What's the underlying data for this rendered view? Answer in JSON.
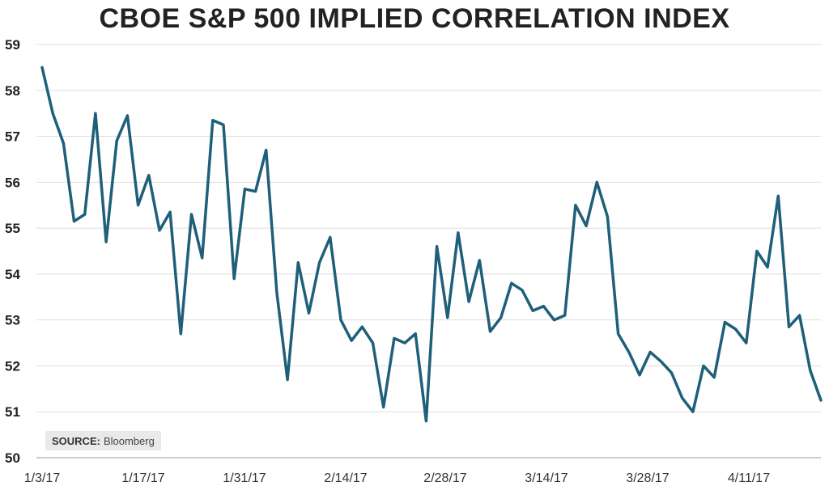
{
  "chart_data": {
    "type": "line",
    "title": "CBOE S&P 500 IMPLIED CORRELATION INDEX",
    "xlabel": "",
    "ylabel": "",
    "ylim": [
      50,
      59
    ],
    "y_ticks": [
      "50",
      "51",
      "52",
      "53",
      "54",
      "55",
      "56",
      "57",
      "58",
      "59"
    ],
    "x_ticks": [
      "1/3/17",
      "1/17/17",
      "1/31/17",
      "2/14/17",
      "2/28/17",
      "3/14/17",
      "3/28/17",
      "4/11/17"
    ],
    "grid": true,
    "line_color": "#1f5f7a",
    "series": [
      {
        "name": "",
        "values": [
          58.5,
          57.5,
          56.85,
          55.15,
          55.3,
          57.5,
          54.7,
          56.9,
          57.45,
          55.5,
          56.15,
          54.95,
          55.35,
          52.7,
          55.3,
          54.35,
          57.35,
          57.25,
          53.9,
          55.85,
          55.8,
          56.7,
          53.6,
          51.7,
          54.25,
          53.15,
          54.25,
          54.8,
          53.0,
          52.55,
          52.85,
          52.5,
          51.1,
          52.6,
          52.5,
          52.7,
          50.8,
          54.6,
          53.05,
          54.9,
          53.4,
          54.3,
          52.75,
          53.05,
          53.8,
          53.65,
          53.2,
          53.3,
          53.0,
          53.1,
          55.5,
          55.05,
          56.0,
          55.25,
          52.7,
          52.3,
          51.8,
          52.3,
          52.1,
          51.85,
          51.3,
          51.0,
          52.0,
          51.75,
          52.95,
          52.8,
          52.5,
          54.5,
          54.15,
          55.7,
          52.85,
          53.1,
          51.9,
          51.25
        ]
      }
    ]
  },
  "source": {
    "label": "SOURCE:",
    "value": "Bloomberg"
  }
}
